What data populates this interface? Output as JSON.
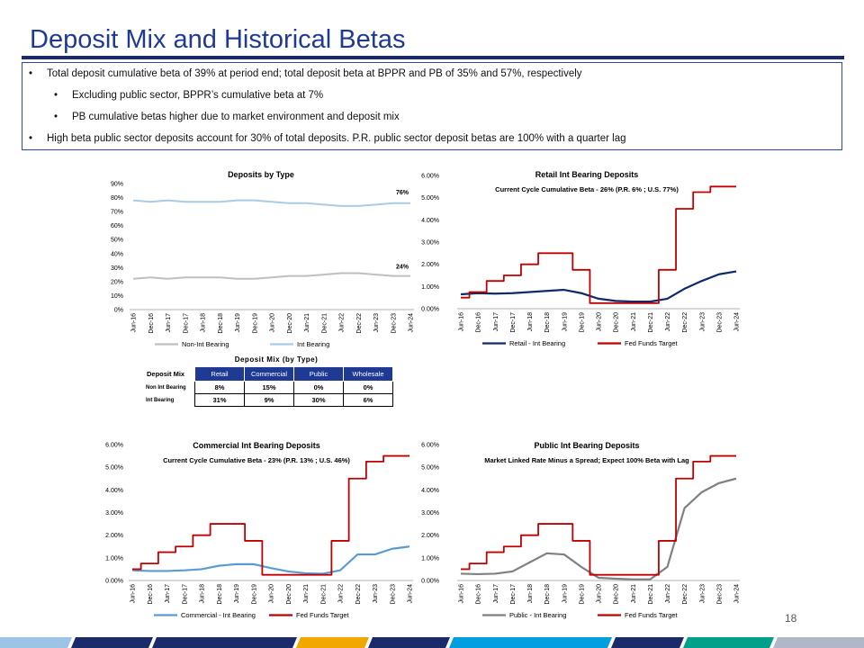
{
  "title": "Deposit Mix and Historical Betas",
  "bullets": [
    {
      "text": "Total deposit cumulative beta of 39% at period end; total deposit beta at BPPR and PB of 35% and 57%, respectively",
      "level": 1
    },
    {
      "text": "Excluding public sector, BPPR’s cumulative beta at 7%",
      "level": 2
    },
    {
      "text": "PB cumulative betas higher due to market environment and deposit mix",
      "level": 2
    },
    {
      "text": "High beta public sector deposits account for 30% of total deposits. P.R. public sector deposit betas are 100% with a quarter lag",
      "level": 1
    }
  ],
  "page_number": "18",
  "colors": {
    "title": "#1f3a93",
    "rule": "#1a2a6b",
    "fed": "#c00000",
    "retail": "#0d2a6b",
    "commercial": "#5b9bd5",
    "public": "#808080",
    "non_int": "#bfbfbf",
    "int": "#a9cbe8"
  },
  "mix_table": {
    "title": "Deposit Mix (by Type)",
    "corner": "Deposit Mix",
    "headers": [
      "Retail",
      "Commercial",
      "Public",
      "Wholesale"
    ],
    "rows": [
      {
        "label": "Non Int Bearing",
        "values": [
          "8%",
          "15%",
          "0%",
          "0%"
        ]
      },
      {
        "label": "Int Bearing",
        "values": [
          "31%",
          "9%",
          "30%",
          "6%"
        ]
      }
    ]
  },
  "x_labels": [
    "Jun-16",
    "Dec-16",
    "Jun-17",
    "Dec-17",
    "Jun-18",
    "Dec-18",
    "Jun-19",
    "Dec-19",
    "Jun-20",
    "Dec-20",
    "Jun-21",
    "Dec-21",
    "Jun-22",
    "Dec-22",
    "Jun-23",
    "Dec-23",
    "Jun-24"
  ],
  "chart_data": [
    {
      "type": "line",
      "title": "Deposits by Type",
      "x": [
        "Jun-16",
        "Dec-16",
        "Jun-17",
        "Dec-17",
        "Jun-18",
        "Dec-18",
        "Jun-19",
        "Dec-19",
        "Jun-20",
        "Dec-20",
        "Jun-21",
        "Dec-21",
        "Jun-22",
        "Dec-22",
        "Jun-23",
        "Dec-23",
        "Jun-24"
      ],
      "yticks": [
        "0%",
        "10%",
        "20%",
        "30%",
        "40%",
        "50%",
        "60%",
        "70%",
        "80%",
        "90%"
      ],
      "ylim": [
        0,
        90
      ],
      "annotations": [
        "76%",
        "24%"
      ],
      "legend": "bottom",
      "series": [
        {
          "name": "Non-Int Bearing",
          "values": [
            22,
            23,
            22,
            23,
            23,
            23,
            22,
            22,
            23,
            24,
            24,
            25,
            26,
            26,
            25,
            24,
            24
          ]
        },
        {
          "name": "Int Bearing",
          "values": [
            78,
            77,
            78,
            77,
            77,
            77,
            78,
            78,
            77,
            76,
            76,
            75,
            74,
            74,
            75,
            76,
            76
          ]
        }
      ]
    },
    {
      "type": "line",
      "title": "Retail Int Bearing Deposits",
      "subtitle": "Current Cycle Cumulative Beta - 26% (P.R. 6% ; U.S. 77%)",
      "x": [
        "Jun-16",
        "Dec-16",
        "Jun-17",
        "Dec-17",
        "Jun-18",
        "Dec-18",
        "Jun-19",
        "Dec-19",
        "Jun-20",
        "Dec-20",
        "Jun-21",
        "Dec-21",
        "Jun-22",
        "Dec-22",
        "Jun-23",
        "Dec-23",
        "Jun-24"
      ],
      "yticks": [
        "0.00%",
        "1.00%",
        "2.00%",
        "3.00%",
        "4.00%",
        "5.00%",
        "6.00%"
      ],
      "ylim": [
        0,
        6
      ],
      "legend": "bottom",
      "series": [
        {
          "name": "Retail - Int Bearing",
          "values": [
            0.65,
            0.7,
            0.68,
            0.7,
            0.75,
            0.8,
            0.85,
            0.7,
            0.45,
            0.35,
            0.32,
            0.32,
            0.45,
            0.9,
            1.25,
            1.55,
            1.68
          ]
        },
        {
          "name": "Fed Funds Target",
          "values": [
            0.5,
            0.75,
            1.25,
            1.5,
            2.0,
            2.5,
            2.5,
            1.75,
            0.25,
            0.25,
            0.25,
            0.25,
            1.75,
            4.5,
            5.25,
            5.5,
            5.5
          ]
        }
      ]
    },
    {
      "type": "line",
      "title": "Commercial Int Bearing Deposits",
      "subtitle": "Current Cycle Cumulative Beta - 23% (P.R. 13% ; U.S. 46%)",
      "x": [
        "Jun-16",
        "Dec-16",
        "Jun-17",
        "Dec-17",
        "Jun-18",
        "Dec-18",
        "Jun-19",
        "Dec-19",
        "Jun-20",
        "Dec-20",
        "Jun-21",
        "Dec-21",
        "Jun-22",
        "Dec-22",
        "Jun-23",
        "Dec-23",
        "Jun-24"
      ],
      "yticks": [
        "0.00%",
        "1.00%",
        "2.00%",
        "3.00%",
        "4.00%",
        "5.00%",
        "6.00%"
      ],
      "ylim": [
        0,
        6
      ],
      "legend": "bottom",
      "series": [
        {
          "name": "Commercial - Int Bearing",
          "values": [
            0.45,
            0.42,
            0.42,
            0.45,
            0.5,
            0.65,
            0.72,
            0.72,
            0.55,
            0.4,
            0.32,
            0.3,
            0.45,
            1.15,
            1.15,
            1.4,
            1.5
          ]
        },
        {
          "name": "Fed Funds Target",
          "values": [
            0.5,
            0.75,
            1.25,
            1.5,
            2.0,
            2.5,
            2.5,
            1.75,
            0.25,
            0.25,
            0.25,
            0.25,
            1.75,
            4.5,
            5.25,
            5.5,
            5.5
          ]
        }
      ]
    },
    {
      "type": "line",
      "title": "Public Int Bearing Deposits",
      "subtitle": "Market Linked Rate Minus a Spread; Expect 100% Beta with Lag",
      "x": [
        "Jun-16",
        "Dec-16",
        "Jun-17",
        "Dec-17",
        "Jun-18",
        "Dec-18",
        "Jun-19",
        "Dec-19",
        "Jun-20",
        "Dec-20",
        "Jun-21",
        "Dec-21",
        "Jun-22",
        "Dec-22",
        "Jun-23",
        "Dec-23",
        "Jun-24"
      ],
      "yticks": [
        "0.00%",
        "1.00%",
        "2.00%",
        "3.00%",
        "4.00%",
        "5.00%",
        "6.00%"
      ],
      "ylim": [
        0,
        6
      ],
      "legend": "bottom",
      "series": [
        {
          "name": "Public - Int Bearing",
          "values": [
            0.3,
            0.28,
            0.3,
            0.4,
            0.8,
            1.2,
            1.15,
            0.6,
            0.12,
            0.08,
            0.05,
            0.05,
            0.6,
            3.2,
            3.9,
            4.3,
            4.5
          ]
        },
        {
          "name": "Fed Funds Target",
          "values": [
            0.5,
            0.75,
            1.25,
            1.5,
            2.0,
            2.5,
            2.5,
            1.75,
            0.25,
            0.25,
            0.25,
            0.25,
            1.75,
            4.5,
            5.25,
            5.5,
            5.5
          ]
        }
      ]
    }
  ]
}
